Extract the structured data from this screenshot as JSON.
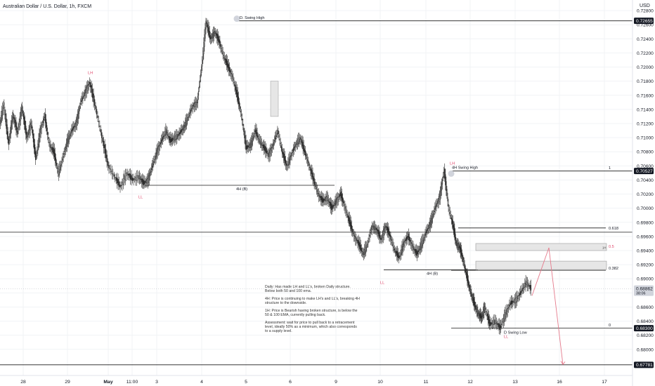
{
  "header": {
    "title": "Australian Dollar / U.S. Dollar, 1h, FXCM",
    "currency": "USD"
  },
  "colors": {
    "candle": "#2b2b2b",
    "grid": "#f1f3f6",
    "line": "#1a1a1a",
    "label_red": "#e0466a",
    "projection": "#e57a8c",
    "zone_fill": "#e6e6e6",
    "price_tag": "#131722"
  },
  "chart_data": {
    "type": "candlestick",
    "title": "Australian Dollar / U.S. Dollar, 1h, FXCM",
    "ylabel": "USD",
    "ylim": [
      0.6763,
      0.7295
    ],
    "y_ticks": [
      0.68,
      0.682,
      0.684,
      0.686,
      0.688,
      0.69,
      0.692,
      0.694,
      0.696,
      0.698,
      0.7,
      0.702,
      0.704,
      0.706,
      0.708,
      0.71,
      0.712,
      0.714,
      0.716,
      0.718,
      0.72,
      0.722,
      0.724,
      0.726,
      0.728
    ],
    "x_ticks": [
      "28",
      "29",
      "May",
      "11:00",
      "3",
      "4",
      "5",
      "6",
      "9",
      "10",
      "11",
      "12",
      "13",
      "16",
      "17"
    ],
    "price_tags": [
      {
        "value": "0.72655",
        "y": 0.72655
      },
      {
        "value": "0.70527",
        "y": 0.70527
      },
      {
        "value": "0.68862",
        "y": 0.68862,
        "sub": "38:06"
      },
      {
        "value": "0.68300",
        "y": 0.683
      },
      {
        "value": "0.67781",
        "y": 0.67781
      }
    ],
    "series": [
      {
        "day": 0,
        "points": [
          [
            0.712,
            0.715
          ],
          [
            0.714,
            0.709
          ],
          [
            0.7095,
            0.7135
          ],
          [
            0.713,
            0.7105
          ],
          [
            0.711,
            0.7145
          ],
          [
            0.714,
            0.71
          ],
          [
            0.71,
            0.712
          ],
          [
            0.712,
            0.707
          ],
          [
            0.707,
            0.711
          ],
          [
            0.711,
            0.713
          ]
        ]
      },
      {
        "day": 1,
        "points": [
          [
            0.713,
            0.709
          ],
          [
            0.709,
            0.708
          ],
          [
            0.708,
            0.705
          ],
          [
            0.705,
            0.707
          ],
          [
            0.707,
            0.7095
          ],
          [
            0.7095,
            0.711
          ],
          [
            0.711,
            0.712
          ],
          [
            0.712,
            0.715
          ],
          [
            0.715,
            0.7165
          ],
          [
            0.7165,
            0.7178
          ]
        ]
      },
      {
        "day": 2,
        "points": [
          [
            0.7178,
            0.714
          ],
          [
            0.714,
            0.71
          ],
          [
            0.71,
            0.706
          ],
          [
            0.706,
            0.7045
          ],
          [
            0.7045,
            0.703
          ],
          [
            0.703,
            0.705
          ],
          [
            0.705,
            0.704
          ],
          [
            0.704,
            0.7045
          ]
        ]
      },
      {
        "day": 3,
        "points": [
          [
            0.7045,
            0.7035
          ],
          [
            0.7035,
            0.704
          ],
          [
            0.704,
            0.706
          ],
          [
            0.706,
            0.708
          ],
          [
            0.708,
            0.7095
          ],
          [
            0.7095,
            0.711
          ],
          [
            0.711,
            0.7095
          ],
          [
            0.7095,
            0.71
          ],
          [
            0.71,
            0.7105
          ],
          [
            0.7105,
            0.7115
          ]
        ]
      },
      {
        "day": 4,
        "points": [
          [
            0.7115,
            0.713
          ],
          [
            0.713,
            0.7145
          ],
          [
            0.7145,
            0.715
          ],
          [
            0.715,
            0.72
          ],
          [
            0.72,
            0.7265
          ],
          [
            0.7265,
            0.724
          ],
          [
            0.724,
            0.725
          ],
          [
            0.725,
            0.7235
          ],
          [
            0.7235,
            0.7215
          ],
          [
            0.7215,
            0.72
          ]
        ]
      },
      {
        "day": 5,
        "points": [
          [
            0.72,
            0.7185
          ],
          [
            0.7185,
            0.716
          ],
          [
            0.716,
            0.713
          ],
          [
            0.713,
            0.7085
          ],
          [
            0.7085,
            0.709
          ],
          [
            0.709,
            0.711
          ],
          [
            0.711,
            0.7095
          ],
          [
            0.7095,
            0.7085
          ],
          [
            0.7085,
            0.7075
          ],
          [
            0.7075,
            0.709
          ]
        ]
      },
      {
        "day": 6,
        "points": [
          [
            0.709,
            0.711
          ],
          [
            0.711,
            0.708
          ],
          [
            0.708,
            0.706
          ],
          [
            0.706,
            0.7075
          ],
          [
            0.7075,
            0.709
          ],
          [
            0.709,
            0.71
          ],
          [
            0.71,
            0.708
          ],
          [
            0.708,
            0.706
          ],
          [
            0.706,
            0.704
          ],
          [
            0.704,
            0.702
          ]
        ]
      },
      {
        "day": 7,
        "points": [
          [
            0.702,
            0.701
          ],
          [
            0.701,
            0.7015
          ],
          [
            0.7015,
            0.7
          ],
          [
            0.7,
            0.701
          ],
          [
            0.701,
            0.702
          ],
          [
            0.702,
            0.7
          ],
          [
            0.7,
            0.698
          ],
          [
            0.698,
            0.696
          ],
          [
            0.696,
            0.695
          ],
          [
            0.695,
            0.6935
          ]
        ]
      },
      {
        "day": 8,
        "points": [
          [
            0.6935,
            0.695
          ],
          [
            0.695,
            0.6975
          ],
          [
            0.6975,
            0.697
          ],
          [
            0.697,
            0.6955
          ],
          [
            0.6955,
            0.6975
          ],
          [
            0.6975,
            0.696
          ],
          [
            0.696,
            0.694
          ],
          [
            0.694,
            0.693
          ],
          [
            0.693,
            0.695
          ],
          [
            0.695,
            0.696
          ]
        ]
      },
      {
        "day": 9,
        "points": [
          [
            0.696,
            0.6945
          ],
          [
            0.6945,
            0.6935
          ],
          [
            0.6935,
            0.695
          ],
          [
            0.695,
            0.6965
          ],
          [
            0.6965,
            0.698
          ],
          [
            0.698,
            0.7
          ],
          [
            0.7,
            0.7015
          ],
          [
            0.7015,
            0.7053
          ],
          [
            0.7053,
            0.7
          ],
          [
            0.7,
            0.6975
          ]
        ]
      },
      {
        "day": 10,
        "points": [
          [
            0.6975,
            0.695
          ],
          [
            0.695,
            0.6945
          ],
          [
            0.6945,
            0.693
          ],
          [
            0.693,
            0.691
          ],
          [
            0.691,
            0.689
          ],
          [
            0.689,
            0.6875
          ],
          [
            0.6875,
            0.686
          ],
          [
            0.686,
            0.685
          ],
          [
            0.685,
            0.6845
          ],
          [
            0.6845,
            0.686
          ]
        ]
      },
      {
        "day": 11,
        "points": [
          [
            0.686,
            0.6835
          ],
          [
            0.6835,
            0.684
          ],
          [
            0.684,
            0.683
          ],
          [
            0.683,
            0.685
          ],
          [
            0.685,
            0.6865
          ],
          [
            0.6865,
            0.687
          ],
          [
            0.687,
            0.688
          ],
          [
            0.688,
            0.6895
          ],
          [
            0.6895,
            0.6886
          ]
        ]
      }
    ],
    "levels": [
      {
        "name": "d-swing-high",
        "y": 0.72655,
        "label": "D. Swing High"
      },
      {
        "name": "4h-swing-high",
        "y": 0.70527,
        "label": "4H Swing High",
        "fib": "1"
      },
      {
        "name": "fib-618",
        "y": 0.6972,
        "fib": "0.618"
      },
      {
        "name": "fib-382",
        "y": 0.6912,
        "fib": "0.382"
      },
      {
        "name": "fib-0",
        "y": 0.683,
        "fib": "0",
        "label": "D Swing Low"
      },
      {
        "name": "bos-4h-left",
        "y": 0.70325,
        "label": "4H (B)"
      },
      {
        "name": "bos-4h-right",
        "y": 0.69127,
        "label": "4H (B)"
      },
      {
        "name": "horizontal-0697",
        "y": 0.6966
      },
      {
        "name": "bottom-line",
        "y": 0.67781
      }
    ],
    "zones": [
      {
        "name": "supply-zone-upper",
        "y_top": 0.695,
        "y_bottom": 0.694,
        "label": "1H",
        "fib": "0.5"
      },
      {
        "name": "supply-zone-lower",
        "y_top": 0.6925,
        "y_bottom": 0.6913
      }
    ],
    "labels": {
      "lh": "LH",
      "ll": "LL"
    },
    "annotation": [
      "Daily: Has made LH and LL's, broken Daily structure. Below both 50 and 100 ema.",
      "4H: Price is continuing to make LH's and LL's, breaking 4H structure to the downside.",
      "1H: Price is Bearish having broken structure, is below the 50 & 100 EMA, currently pulling back.",
      "Assessment: wait for price to pull back to a retracement level, ideally 50% as a minimum, which also corresponds to a supply level."
    ]
  }
}
